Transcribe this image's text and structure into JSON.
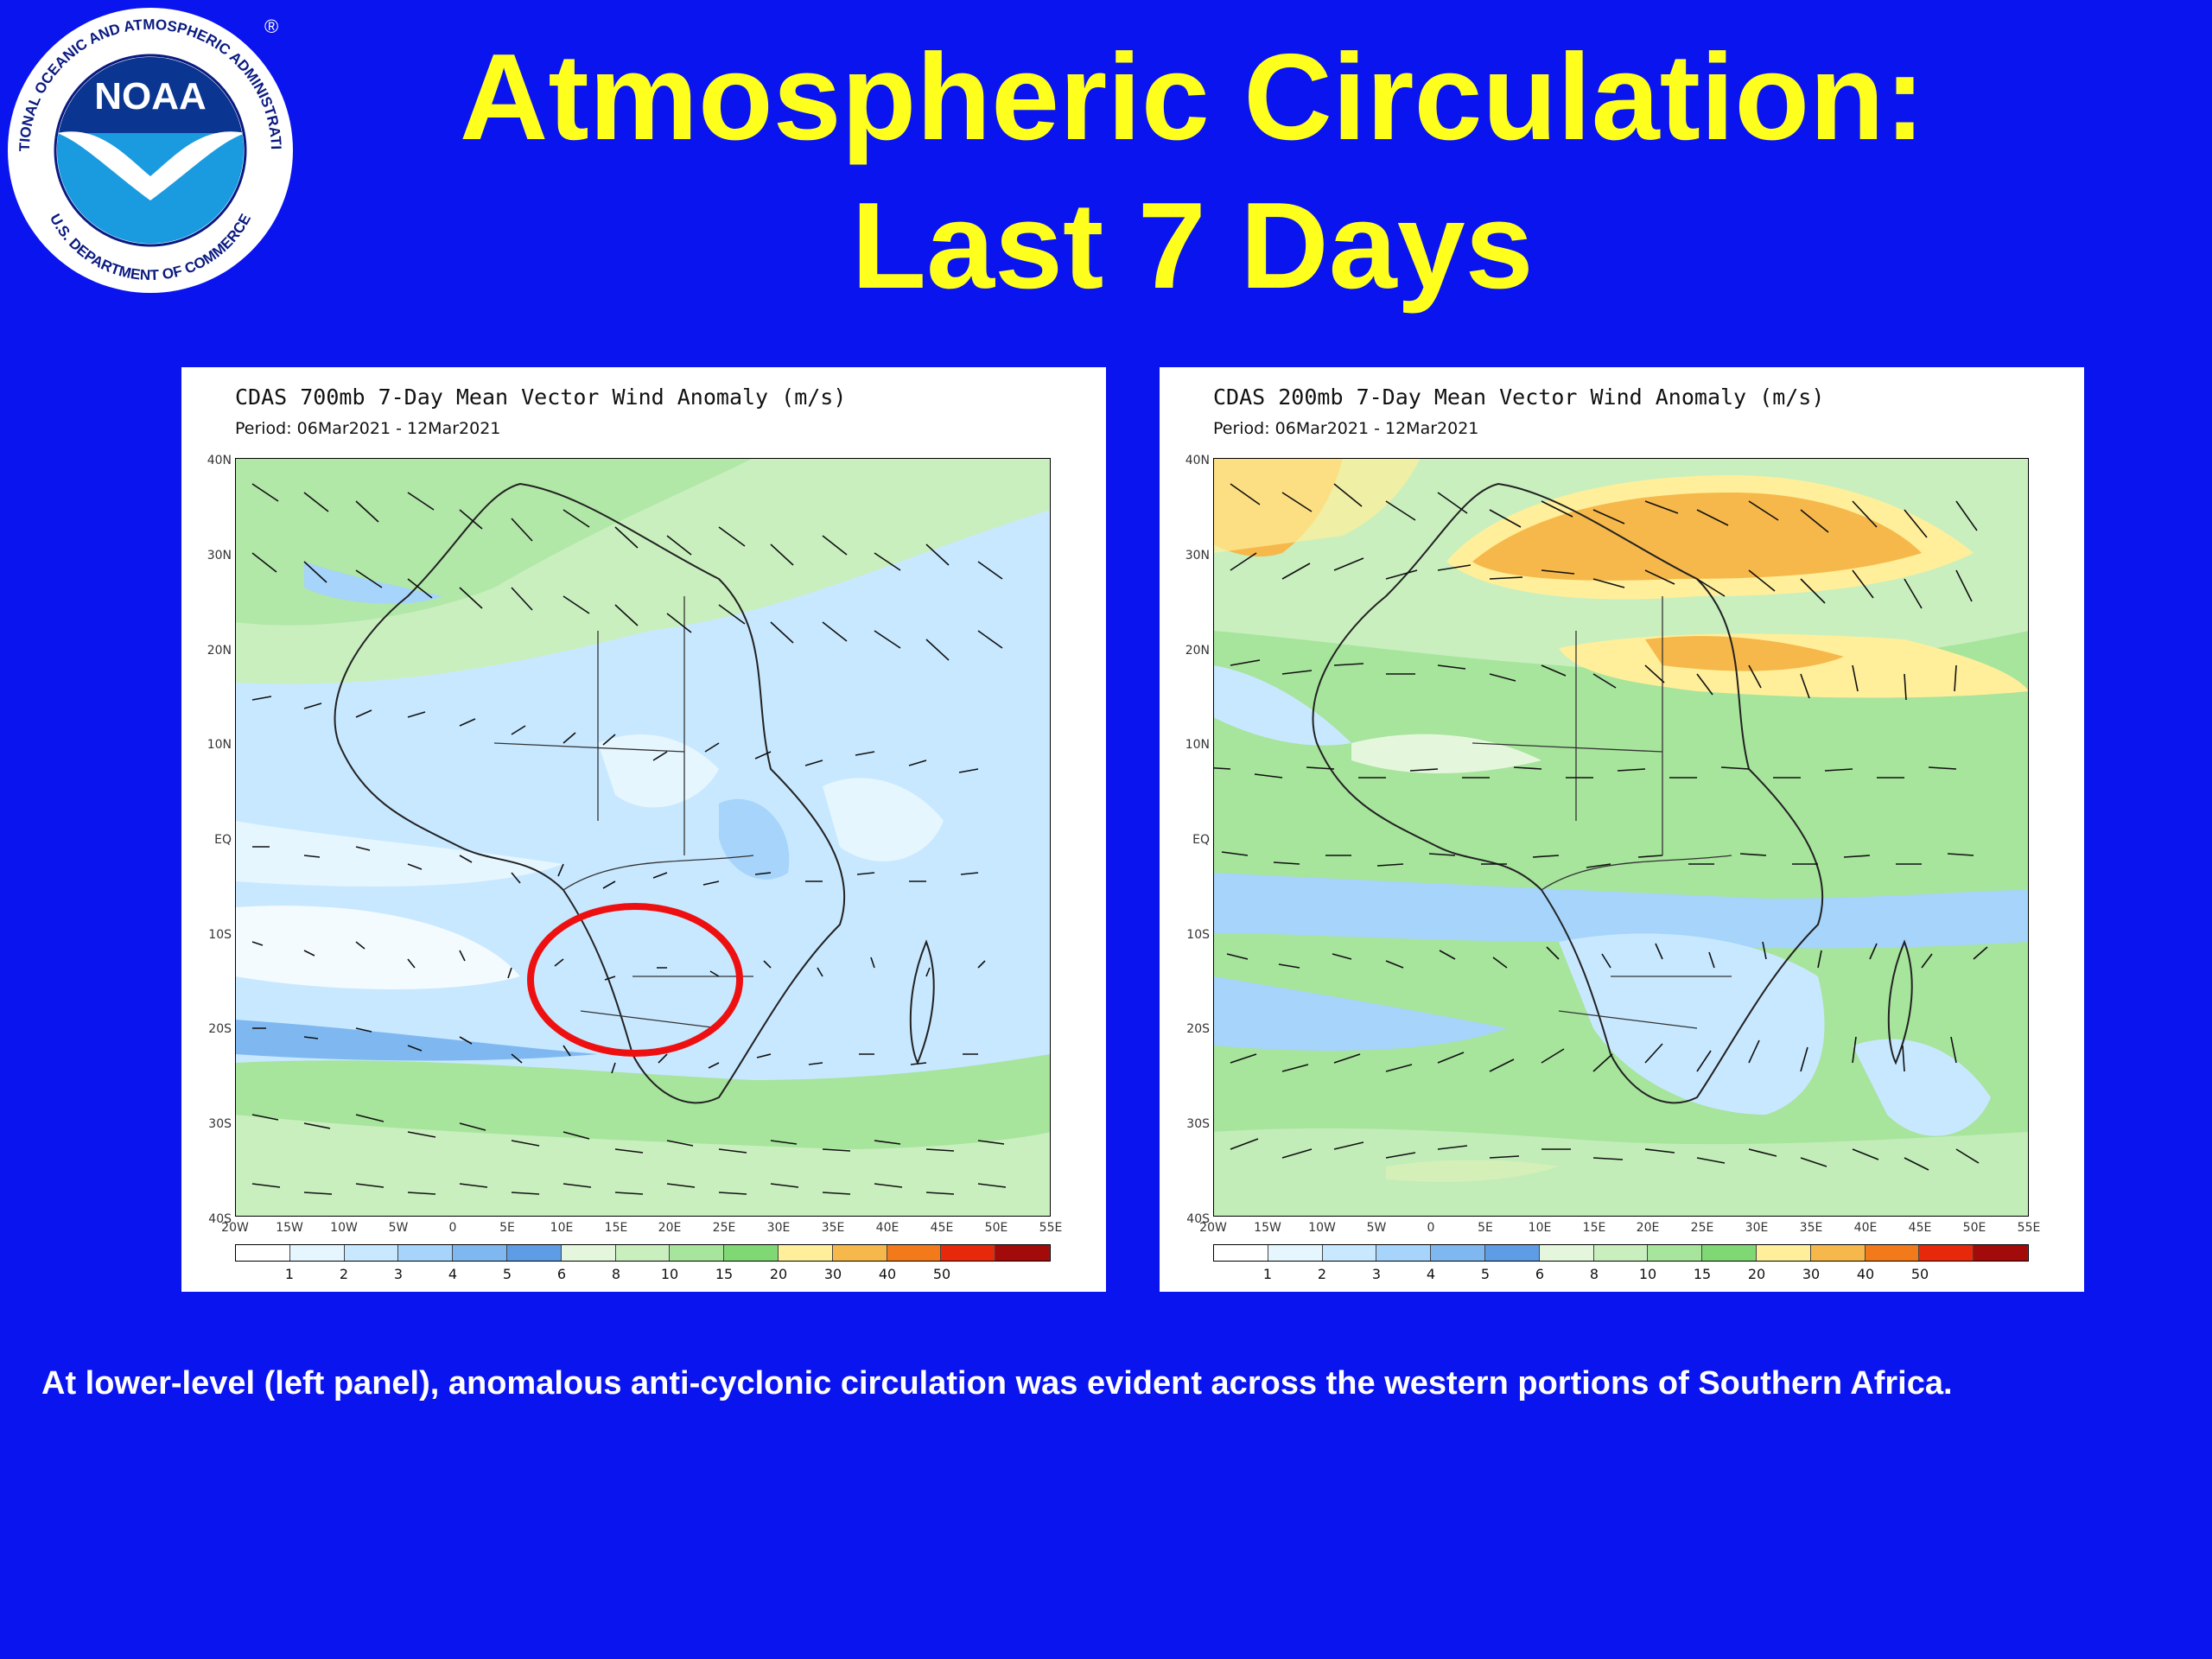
{
  "logo": {
    "text": "NOAA",
    "ring_text": "NATIONAL OCEANIC AND ATMOSPHERIC ADMINISTRATION",
    "dept_text": "U.S. DEPARTMENT OF COMMERCE",
    "registered": "®"
  },
  "title": {
    "line1": "Atmospheric Circulation:",
    "line2": "Last 7 Days"
  },
  "panels": [
    {
      "title": "CDAS 700mb 7-Day Mean Vector Wind Anomaly (m/s)",
      "period": "Period: 06Mar2021 - 12Mar2021",
      "highlight": "red-circle"
    },
    {
      "title": "CDAS 200mb 7-Day Mean Vector Wind Anomaly (m/s)",
      "period": "Period: 06Mar2021 - 12Mar2021"
    }
  ],
  "axes": {
    "lat_labels": [
      "40N",
      "30N",
      "20N",
      "10N",
      "EQ",
      "10S",
      "20S",
      "30S",
      "40S"
    ],
    "lon_labels": [
      "20W",
      "15W",
      "10W",
      "5W",
      "0",
      "5E",
      "10E",
      "15E",
      "20E",
      "25E",
      "30E",
      "35E",
      "40E",
      "45E",
      "50E",
      "55E"
    ]
  },
  "colorbar": {
    "labels": [
      "1",
      "2",
      "3",
      "4",
      "5",
      "6",
      "8",
      "10",
      "15",
      "20",
      "30",
      "40",
      "50"
    ],
    "colors": [
      "#ffffff",
      "#e6f6ff",
      "#c8e8ff",
      "#a6d4fb",
      "#7fb8f0",
      "#5e9ce6",
      "#e4f7dc",
      "#c9efbf",
      "#a7e49c",
      "#7fd873",
      "#ffef9a",
      "#f6b84a",
      "#f27a1a",
      "#e8280a",
      "#a30a0a"
    ]
  },
  "caption": "At lower-level (left panel), anomalous anti-cyclonic circulation was evident across the western portions of Southern Africa."
}
